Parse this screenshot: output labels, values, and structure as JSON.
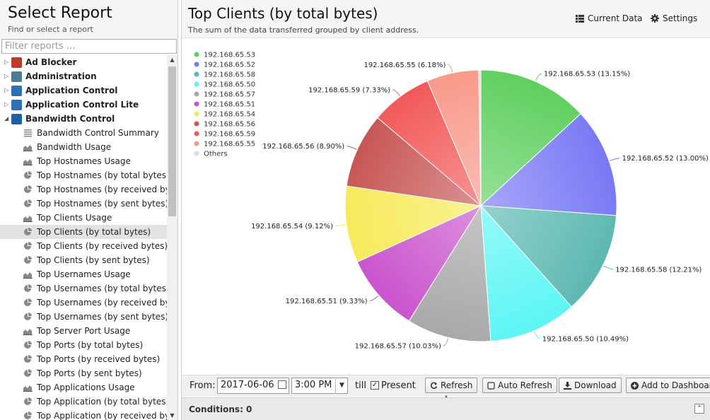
{
  "sidebar": {
    "title": "Select Report",
    "subtitle": "Find or select a report",
    "filter_placeholder": "Filter reports ...",
    "categories": [
      {
        "label": "Ad Blocker",
        "expanded": false,
        "icon": "ad-blocker-icon",
        "color": "#c0392b"
      },
      {
        "label": "Administration",
        "expanded": false,
        "icon": "administration-icon",
        "color": "#4d7d94"
      },
      {
        "label": "Application Control",
        "expanded": false,
        "icon": "application-control-icon",
        "color": "#2f6fb6"
      },
      {
        "label": "Application Control Lite",
        "expanded": false,
        "icon": "application-control-lite-icon",
        "color": "#2f6fb6"
      },
      {
        "label": "Bandwidth Control",
        "expanded": true,
        "icon": "bandwidth-control-icon",
        "color": "#1f5fa8"
      }
    ],
    "reports": [
      {
        "label": "Bandwidth Control Summary",
        "icon": "summary-icon"
      },
      {
        "label": "Bandwidth Usage",
        "icon": "area-chart-icon"
      },
      {
        "label": "Top Hostnames Usage",
        "icon": "area-chart-icon"
      },
      {
        "label": "Top Hostnames (by total bytes)",
        "icon": "pie-chart-icon"
      },
      {
        "label": "Top Hostnames (by received byt...",
        "icon": "pie-chart-icon"
      },
      {
        "label": "Top Hostnames (by sent bytes)",
        "icon": "pie-chart-icon"
      },
      {
        "label": "Top Clients Usage",
        "icon": "area-chart-icon"
      },
      {
        "label": "Top Clients (by total bytes)",
        "icon": "pie-chart-icon",
        "selected": true
      },
      {
        "label": "Top Clients (by received bytes)",
        "icon": "pie-chart-icon"
      },
      {
        "label": "Top Clients (by sent bytes)",
        "icon": "pie-chart-icon"
      },
      {
        "label": "Top Usernames Usage",
        "icon": "area-chart-icon"
      },
      {
        "label": "Top Usernames (by total bytes)",
        "icon": "pie-chart-icon"
      },
      {
        "label": "Top Usernames (by received bytes)",
        "icon": "pie-chart-icon"
      },
      {
        "label": "Top Usernames (by sent bytes)",
        "icon": "pie-chart-icon"
      },
      {
        "label": "Top Server Port Usage",
        "icon": "area-chart-icon"
      },
      {
        "label": "Top Ports (by total bytes)",
        "icon": "pie-chart-icon"
      },
      {
        "label": "Top Ports (by received bytes)",
        "icon": "pie-chart-icon"
      },
      {
        "label": "Top Ports (by sent bytes)",
        "icon": "pie-chart-icon"
      },
      {
        "label": "Top Applications Usage",
        "icon": "area-chart-icon"
      },
      {
        "label": "Top Application (by total bytes)",
        "icon": "pie-chart-icon"
      },
      {
        "label": "Top Application (by received bytes)",
        "icon": "pie-chart-icon"
      }
    ]
  },
  "report": {
    "title": "Top Clients (by total bytes)",
    "subtitle": "The sum of the data transferred grouped by client address.",
    "current_data_label": "Current Data",
    "settings_label": "Settings"
  },
  "toolbar": {
    "from_label": "From:",
    "from_date": "2017-06-06",
    "from_time": "3:00 PM",
    "till_label": "till",
    "present_checked": true,
    "present_label": "Present",
    "refresh_label": "Refresh",
    "auto_refresh_label": "Auto Refresh",
    "download_label": "Download",
    "add_dashboard_label": "Add to Dashboard"
  },
  "conditions": {
    "label": "Conditions: 0"
  },
  "chart_data": {
    "type": "pie",
    "title": "",
    "legend_position": "top-left",
    "categories": [
      "192.168.65.53",
      "192.168.65.52",
      "192.168.65.58",
      "192.168.65.50",
      "192.168.65.57",
      "192.168.65.51",
      "192.168.65.54",
      "192.168.65.56",
      "192.168.65.59",
      "192.168.65.55",
      "Others"
    ],
    "values": [
      13.15,
      13.0,
      12.21,
      10.49,
      10.03,
      9.33,
      9.12,
      8.9,
      7.33,
      6.18,
      0.26
    ],
    "colors": [
      "#5fcf5f",
      "#7878f5",
      "#5cb8b0",
      "#5cf5f5",
      "#a8a8a8",
      "#c953cd",
      "#f6ea5a",
      "#c75656",
      "#f25959",
      "#f89a8a",
      "#dddddd"
    ],
    "data_labels": [
      "192.168.65.53 (13.15%)",
      "192.168.65.52 (13.00%)",
      "192.168.65.58 (12.21%)",
      "192.168.65.50 (10.49%)",
      "192.168.65.57 (10.03%)",
      "192.168.65.51 (9.33%)",
      "192.168.65.54 (9.12%)",
      "192.168.65.56 (8.90%)",
      "192.168.65.59 (7.33%)",
      "192.168.65.55 (6.18%)",
      ""
    ]
  }
}
